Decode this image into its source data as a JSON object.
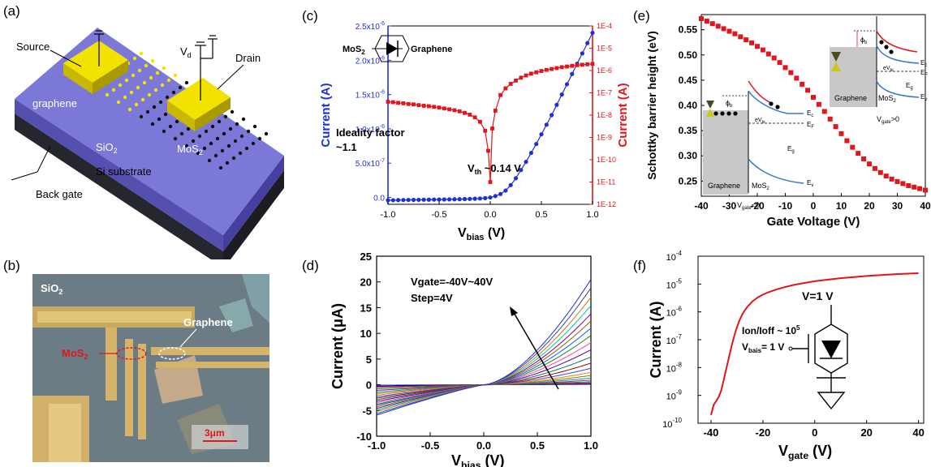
{
  "panels": {
    "a": {
      "label": "(a)",
      "source": "Source",
      "drain": "Drain",
      "vd": "V",
      "vd_sub": "d",
      "graphene": "graphene",
      "mos2": "MoS",
      "mos2_sub": "2",
      "sio2": "SiO",
      "sio2_sub": "2",
      "si": "Si substrate",
      "backgate": "Back gate"
    },
    "b": {
      "label": "(b)",
      "sio2": "SiO",
      "sio2_sub": "2",
      "graphene": "Graphene",
      "mos2": "MoS",
      "mos2_sub": "2",
      "scale": "3μm"
    },
    "c": {
      "label": "(c)",
      "inset_left": "MoS",
      "inset_left_sub": "2",
      "inset_right": "Graphene",
      "ideality_1": "Ideality factor",
      "ideality_2": "~1.1",
      "vth": "V",
      "vth_sub": "th",
      "vth_val": " ~0.14 V"
    },
    "d": {
      "label": "(d)",
      "note_1": "Vgate=-40V~40V",
      "note_2": "Step=4V"
    },
    "e": {
      "label": "(e)",
      "inset_graphene_1": "Graphene",
      "inset_mos2_1": "MoS",
      "inset_mos2_sub": "2",
      "vgate_neg": "V",
      "vgate_neg_sub": "gate",
      "vgate_neg_tail": "<0",
      "vgate_pos": "V",
      "vgate_pos_sub": "gate",
      "vgate_pos_tail": ">0",
      "phi": "ϕ",
      "phi_sub": "b",
      "ec": "E",
      "ec_sub": "c",
      "ef": "E",
      "ef_sub": "F",
      "eg": "E",
      "eg_sub": "g",
      "ev": "E",
      "ev_sub": "v",
      "ev_label": "eV",
      "ev_label_sub": "bi"
    },
    "f": {
      "label": "(f)",
      "v_label": "V=1 V",
      "ratio_1": "Ion/Ioff ~ 10",
      "ratio_sup": "5",
      "vbais": "V",
      "vbais_sub": "bais",
      "vbais_tail": "= 1 V"
    }
  },
  "colors": {
    "blue": "#1f2fd6",
    "red": "#e0161c",
    "substrate_top": "#7c78d8",
    "substrate_side": "#5550b0",
    "si_dark": "#26262e",
    "gold": "#f2e200"
  },
  "chart_data": [
    {
      "id": "c",
      "type": "line",
      "xlabel": "V",
      "xlabel_sub": "bias",
      "xlabel_tail": " (V)",
      "ylabel_left": "Current (A)",
      "ylabel_right": "Current (A)",
      "xlim": [
        -1.0,
        1.0
      ],
      "ylim_left": [
        -1e-07,
        2.5e-06
      ],
      "ylim_right_log": [
        -12,
        -4
      ],
      "x_ticks": [
        "-1.0",
        "-0.5",
        "0.0",
        "0.5",
        "1.0"
      ],
      "x_tick_values": [
        -1.0,
        -0.5,
        0.0,
        0.5,
        1.0
      ],
      "y_left_ticks": [
        "0.0",
        "5.0x10",
        "1.0x10",
        "1.5x10",
        "2.0x10",
        "2.5x10"
      ],
      "y_left_tick_sup": [
        "",
        "-7",
        "-6",
        "-6",
        "-6",
        "-6"
      ],
      "y_left_tick_values": [
        0,
        5e-07,
        1e-06,
        1.5e-06,
        2e-06,
        2.5e-06
      ],
      "y_right_ticks": [
        "1E-12",
        "1E-11",
        "1E-10",
        "1E-9",
        "1E-8",
        "1E-7",
        "1E-6",
        "1E-5",
        "1E-4"
      ],
      "y_right_tick_values": [
        -12,
        -11,
        -10,
        -9,
        -8,
        -7,
        -6,
        -5,
        -4
      ],
      "series": [
        {
          "axis": "left",
          "color": "#1f2fd6",
          "x": [
            -1.0,
            -0.95,
            -0.9,
            -0.85,
            -0.8,
            -0.75,
            -0.7,
            -0.65,
            -0.6,
            -0.55,
            -0.5,
            -0.45,
            -0.4,
            -0.35,
            -0.3,
            -0.25,
            -0.2,
            -0.15,
            -0.1,
            -0.05,
            0.0,
            0.05,
            0.1,
            0.15,
            0.2,
            0.25,
            0.3,
            0.35,
            0.4,
            0.45,
            0.5,
            0.55,
            0.6,
            0.65,
            0.7,
            0.75,
            0.8,
            0.85,
            0.9,
            0.95,
            1.0
          ],
          "y": [
            -4e-08,
            -4e-08,
            -3.8e-08,
            -3.7e-08,
            -3.6e-08,
            -3.5e-08,
            -3.4e-08,
            -3.3e-08,
            -3.2e-08,
            -3.1e-08,
            -3e-08,
            -2.9e-08,
            -2.8e-08,
            -2.6e-08,
            -2.5e-08,
            -2.3e-08,
            -2.1e-08,
            -1.9e-08,
            -1.5e-08,
            -1e-08,
            0,
            2e-08,
            5e-08,
            1e-07,
            1.8e-07,
            2.8e-07,
            4e-07,
            5.2e-07,
            6.5e-07,
            7.8e-07,
            9.2e-07,
            1.06e-06,
            1.2e-06,
            1.35e-06,
            1.5e-06,
            1.65e-06,
            1.8e-06,
            1.95e-06,
            2.1e-06,
            2.25e-06,
            2.4e-06
          ]
        },
        {
          "axis": "right",
          "color": "#e0161c",
          "x": [
            -1.0,
            -0.95,
            -0.9,
            -0.85,
            -0.8,
            -0.75,
            -0.7,
            -0.65,
            -0.6,
            -0.55,
            -0.5,
            -0.45,
            -0.4,
            -0.35,
            -0.3,
            -0.25,
            -0.2,
            -0.15,
            -0.1,
            -0.05,
            -0.02,
            0.0,
            0.02,
            0.05,
            0.1,
            0.15,
            0.2,
            0.25,
            0.3,
            0.35,
            0.4,
            0.45,
            0.5,
            0.55,
            0.6,
            0.65,
            0.7,
            0.75,
            0.8,
            0.85,
            0.9,
            0.95,
            1.0
          ],
          "y": [
            -7.4,
            -7.42,
            -7.45,
            -7.47,
            -7.5,
            -7.52,
            -7.55,
            -7.58,
            -7.6,
            -7.63,
            -7.66,
            -7.7,
            -7.74,
            -7.78,
            -7.83,
            -7.9,
            -7.98,
            -8.1,
            -8.3,
            -8.7,
            -9.6,
            -11.0,
            -8.6,
            -7.8,
            -7.1,
            -6.8,
            -6.6,
            -6.45,
            -6.32,
            -6.22,
            -6.14,
            -6.08,
            -6.02,
            -5.97,
            -5.93,
            -5.89,
            -5.85,
            -5.82,
            -5.79,
            -5.76,
            -5.74,
            -5.72,
            -5.7
          ]
        }
      ]
    },
    {
      "id": "d",
      "type": "line",
      "xlabel": "V",
      "xlabel_sub": "bias",
      "xlabel_tail": " (V)",
      "ylabel": "Current (μA)",
      "xlim": [
        -1.0,
        1.0
      ],
      "ylim": [
        -10,
        25
      ],
      "x_ticks": [
        "-1.0",
        "-0.5",
        "0.0",
        "0.5",
        "1.0"
      ],
      "x_tick_values": [
        -1.0,
        -0.5,
        0.0,
        0.5,
        1.0
      ],
      "y_ticks": [
        "-10",
        "-5",
        "0",
        "5",
        "10",
        "15",
        "20",
        "25"
      ],
      "y_tick_values": [
        -10,
        -5,
        0,
        5,
        10,
        15,
        20,
        25
      ],
      "vgate": [
        -40,
        -36,
        -32,
        -28,
        -24,
        -20,
        -16,
        -12,
        -8,
        -4,
        0,
        4,
        8,
        12,
        16,
        20,
        24,
        28,
        32,
        36,
        40
      ],
      "end_pos": [
        0.1,
        0.2,
        0.4,
        0.6,
        0.9,
        1.3,
        1.8,
        2.4,
        3.2,
        4.2,
        5.4,
        6.8,
        8.2,
        9.6,
        11.0,
        12.4,
        13.8,
        15.4,
        17.0,
        18.8,
        20.5
      ],
      "end_neg": [
        -0.1,
        -0.3,
        -0.5,
        -0.8,
        -1.1,
        -1.4,
        -1.7,
        -2.0,
        -2.3,
        -2.6,
        -2.9,
        -3.2,
        -3.5,
        -3.8,
        -4.0,
        -4.3,
        -4.6,
        -4.9,
        -5.2,
        -5.6,
        -5.9
      ]
    },
    {
      "id": "e",
      "type": "scatter",
      "xlabel": "Gate Voltage (V)",
      "ylabel": "Schottky barrier height (eV)",
      "xlim": [
        -40,
        40
      ],
      "ylim": [
        0.22,
        0.58
      ],
      "x_ticks": [
        "-40",
        "-30",
        "-20",
        "-10",
        "0",
        "10",
        "20",
        "30",
        "40"
      ],
      "x_tick_values": [
        -40,
        -30,
        -20,
        -10,
        0,
        10,
        20,
        30,
        40
      ],
      "y_ticks": [
        "0.25",
        "0.30",
        "0.35",
        "0.40",
        "0.45",
        "0.50",
        "0.55"
      ],
      "y_tick_values": [
        0.25,
        0.3,
        0.35,
        0.4,
        0.45,
        0.5,
        0.55
      ],
      "x": [
        -40,
        -38,
        -36,
        -34,
        -32,
        -30,
        -28,
        -26,
        -24,
        -22,
        -20,
        -18,
        -16,
        -14,
        -12,
        -10,
        -8,
        -6,
        -4,
        -2,
        0,
        2,
        4,
        6,
        8,
        10,
        12,
        14,
        16,
        18,
        20,
        22,
        24,
        26,
        28,
        30,
        32,
        34,
        36,
        38,
        40
      ],
      "y": [
        0.572,
        0.567,
        0.562,
        0.557,
        0.552,
        0.547,
        0.542,
        0.536,
        0.53,
        0.524,
        0.517,
        0.51,
        0.502,
        0.494,
        0.485,
        0.475,
        0.465,
        0.454,
        0.442,
        0.43,
        0.416,
        0.402,
        0.388,
        0.373,
        0.358,
        0.344,
        0.33,
        0.317,
        0.305,
        0.294,
        0.284,
        0.275,
        0.267,
        0.26,
        0.254,
        0.249,
        0.245,
        0.241,
        0.238,
        0.235,
        0.232
      ],
      "color": "#e0161c"
    },
    {
      "id": "f",
      "type": "line",
      "xlabel": "V",
      "xlabel_sub": "gate",
      "xlabel_tail": " (V)",
      "ylabel": "Current (A)",
      "xlim": [
        -45,
        42
      ],
      "ylim_log": [
        -10,
        -4
      ],
      "x_ticks": [
        "-40",
        "-20",
        "0",
        "20",
        "40"
      ],
      "x_tick_values": [
        -40,
        -20,
        0,
        20,
        40
      ],
      "y_ticks_base": [
        "10",
        "10",
        "10",
        "10",
        "10",
        "10",
        "10"
      ],
      "y_ticks_sup": [
        "-10",
        "-9",
        "-8",
        "-7",
        "-6",
        "-5",
        "-4"
      ],
      "y_tick_values": [
        -10,
        -9,
        -8,
        -7,
        -6,
        -5,
        -4
      ],
      "x": [
        -40,
        -39,
        -38,
        -37,
        -36,
        -35,
        -34,
        -33,
        -32,
        -31,
        -30,
        -29,
        -28,
        -27,
        -26,
        -25,
        -24,
        -22,
        -20,
        -18,
        -15,
        -12,
        -8,
        -4,
        0,
        5,
        10,
        15,
        20,
        25,
        30,
        35,
        40
      ],
      "y": [
        -9.7,
        -9.35,
        -9.2,
        -9.05,
        -8.8,
        -8.4,
        -8.0,
        -7.6,
        -7.2,
        -6.85,
        -6.55,
        -6.3,
        -6.1,
        -5.95,
        -5.82,
        -5.72,
        -5.62,
        -5.48,
        -5.38,
        -5.3,
        -5.2,
        -5.12,
        -5.03,
        -4.96,
        -4.9,
        -4.84,
        -4.79,
        -4.75,
        -4.71,
        -4.68,
        -4.65,
        -4.63,
        -4.61
      ],
      "color": "#e0161c"
    }
  ]
}
